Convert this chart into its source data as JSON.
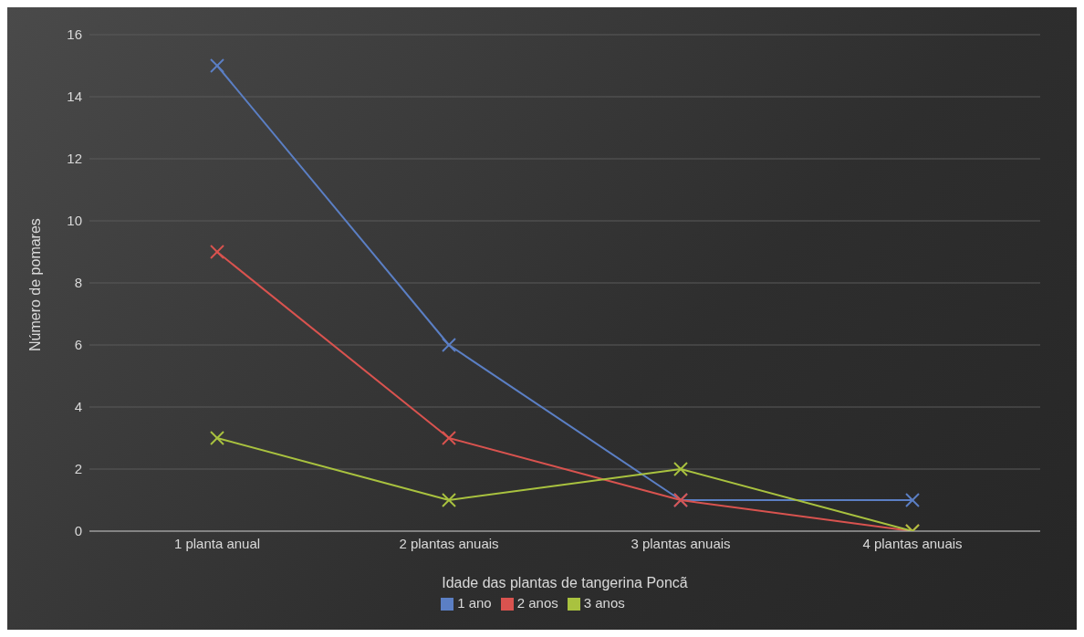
{
  "chart_data": {
    "type": "line",
    "xlabel": "Idade das plantas de tangerina Poncã",
    "ylabel": "Número de pomares",
    "categories": [
      "1 planta anual",
      "2 plantas anuais",
      "3 plantas anuais",
      "4 plantas anuais"
    ],
    "series": [
      {
        "name": "1 ano",
        "color": "#5b7fc4",
        "values": [
          15,
          6,
          1,
          1
        ]
      },
      {
        "name": "2 anos",
        "color": "#d9534f",
        "values": [
          9,
          3,
          1,
          0
        ]
      },
      {
        "name": "3 anos",
        "color": "#a9c23f",
        "values": [
          3,
          1,
          2,
          0
        ]
      }
    ],
    "ylim": [
      0,
      16
    ],
    "yticks": [
      0,
      2,
      4,
      6,
      8,
      10,
      12,
      14,
      16
    ],
    "grid": "y",
    "legend": "bottom",
    "marker": "cross",
    "line_style": "solid"
  }
}
